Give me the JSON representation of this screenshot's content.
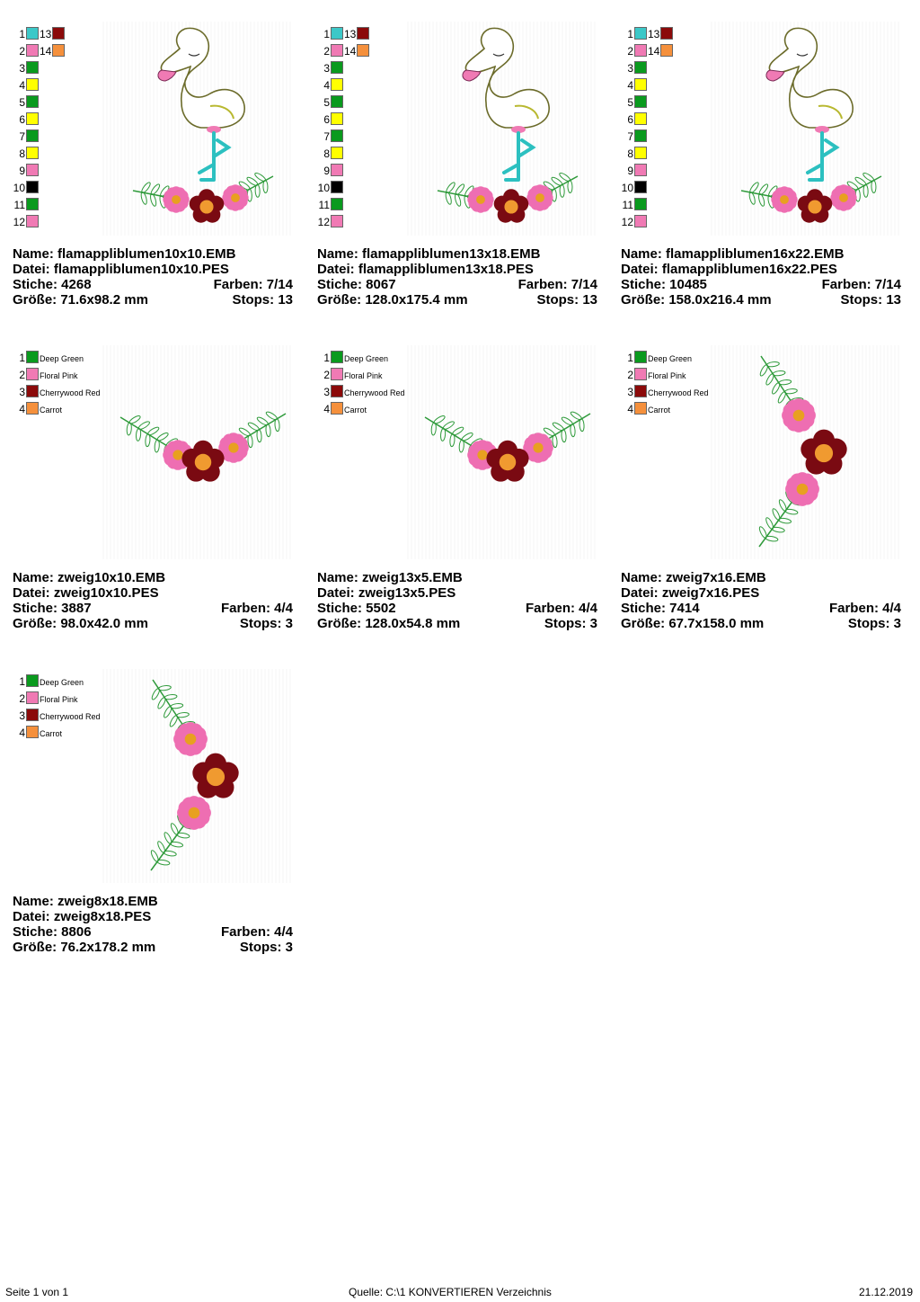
{
  "labels": {
    "name": "Name:",
    "file": "Datei:",
    "stitches": "Stiche:",
    "colors": "Farben:",
    "size": "Größe:",
    "stops": "Stops:"
  },
  "flamingo_palette": [
    {
      "num": "1",
      "color": "#3cc8c8"
    },
    {
      "num": "2",
      "color": "#f07ab4"
    },
    {
      "num": "3",
      "color": "#0a9a1e"
    },
    {
      "num": "4",
      "color": "#ffff00"
    },
    {
      "num": "5",
      "color": "#0a9a1e"
    },
    {
      "num": "6",
      "color": "#ffff00"
    },
    {
      "num": "7",
      "color": "#0a9a1e"
    },
    {
      "num": "8",
      "color": "#ffff00"
    },
    {
      "num": "9",
      "color": "#f07ab4"
    },
    {
      "num": "10",
      "color": "#000000"
    },
    {
      "num": "11",
      "color": "#0a9a1e"
    },
    {
      "num": "12",
      "color": "#f07ab4"
    }
  ],
  "flamingo_palette_col2": [
    {
      "num": "13",
      "color": "#8b0a0a"
    },
    {
      "num": "14",
      "color": "#f5903c"
    }
  ],
  "branch_palette": [
    {
      "num": "1",
      "color": "#0a9a1e",
      "name": "Deep Green"
    },
    {
      "num": "2",
      "color": "#f07ab4",
      "name": "Floral Pink"
    },
    {
      "num": "3",
      "color": "#8b0a0a",
      "name": "Cherrywood Red"
    },
    {
      "num": "4",
      "color": "#f5903c",
      "name": "Carrot"
    }
  ],
  "designs": [
    {
      "name": "flamappliblumen10x10.EMB",
      "file": "flamappliblumen10x10.PES",
      "stitches": "4268",
      "colors": "7/14",
      "size": "71.6x98.2 mm",
      "stops": "13",
      "art": "flamingo"
    },
    {
      "name": "flamappliblumen13x18.EMB",
      "file": "flamappliblumen13x18.PES",
      "stitches": "8067",
      "colors": "7/14",
      "size": "128.0x175.4 mm",
      "stops": "13",
      "art": "flamingo"
    },
    {
      "name": "flamappliblumen16x22.EMB",
      "file": "flamappliblumen16x22.PES",
      "stitches": "10485",
      "colors": "7/14",
      "size": "158.0x216.4 mm",
      "stops": "13",
      "art": "flamingo"
    },
    {
      "name": "zweig10x10.EMB",
      "file": "zweig10x10.PES",
      "stitches": "3887",
      "colors": "4/4",
      "size": "98.0x42.0 mm",
      "stops": "3",
      "art": "branch-h"
    },
    {
      "name": "zweig13x5.EMB",
      "file": "zweig13x5.PES",
      "stitches": "5502",
      "colors": "4/4",
      "size": "128.0x54.8 mm",
      "stops": "3",
      "art": "branch-h"
    },
    {
      "name": "zweig7x16.EMB",
      "file": "zweig7x16.PES",
      "stitches": "7414",
      "colors": "4/4",
      "size": "67.7x158.0 mm",
      "stops": "3",
      "art": "branch-v"
    },
    {
      "name": "zweig8x18.EMB",
      "file": "zweig8x18.PES",
      "stitches": "8806",
      "colors": "4/4",
      "size": "76.2x178.2 mm",
      "stops": "3",
      "art": "branch-v"
    }
  ],
  "footer": {
    "page": "Seite 1 von 1",
    "source": "Quelle: C:\\1 KONVERTIEREN Verzeichnis",
    "date": "21.12.2019"
  }
}
